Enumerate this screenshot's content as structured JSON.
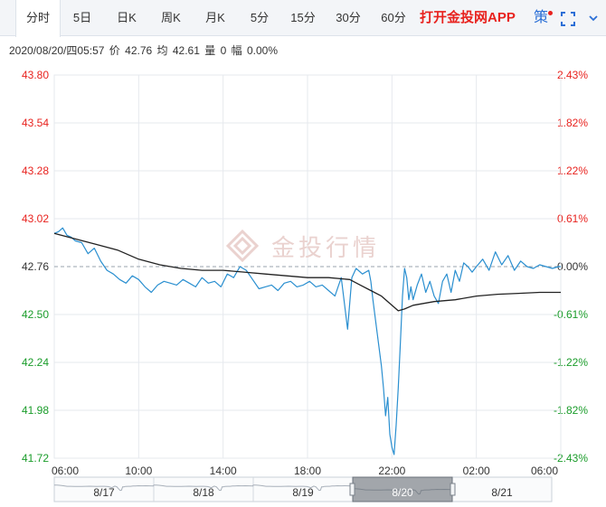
{
  "tabs": [
    "分时",
    "5日",
    "日K",
    "周K",
    "月K",
    "5分",
    "15分",
    "30分",
    "60分"
  ],
  "active_tab": 0,
  "promo_label": "打开金投网APP",
  "strategy_label": "策",
  "watermark": "金投行情",
  "info": {
    "datetime": "2020/08/20/四05:57",
    "price_label": "价",
    "price": "42.76",
    "avg_label": "均",
    "avg": "42.61",
    "volume_label": "量",
    "volume": "0",
    "change_label": "幅",
    "change": "0.00%"
  },
  "colors": {
    "price_line": "#2a8fd0",
    "avg_line": "#222222",
    "up": "#e8221e",
    "down": "#1a9c2a",
    "neutral": "#333333",
    "grid": "#e6e9ee"
  },
  "chart_data": {
    "type": "line",
    "ylim": [
      41.72,
      43.8
    ],
    "base_price": 42.76,
    "left_ticks": [
      "43.80",
      "43.54",
      "43.28",
      "43.02",
      "42.76",
      "42.50",
      "42.24",
      "41.98",
      "41.72"
    ],
    "right_ticks": [
      "2.43%",
      "1.82%",
      "1.22%",
      "0.61%",
      "0.00%",
      "-0.61%",
      "-1.22%",
      "-1.82%",
      "-2.43%"
    ],
    "x_ticks": [
      "06:00",
      "10:00",
      "14:00",
      "18:00",
      "22:00",
      "02:00",
      "06:00"
    ],
    "x_hours": [
      0,
      4,
      8,
      12,
      16,
      20,
      24
    ],
    "series": [
      {
        "key": "price",
        "x": [
          0,
          0.2,
          0.4,
          0.6,
          0.8,
          1.0,
          1.3,
          1.6,
          1.9,
          2.2,
          2.5,
          2.8,
          3.1,
          3.4,
          3.7,
          4.0,
          4.3,
          4.6,
          4.9,
          5.2,
          5.5,
          5.8,
          6.1,
          6.4,
          6.7,
          7.0,
          7.3,
          7.6,
          7.9,
          8.2,
          8.5,
          8.8,
          9.1,
          9.4,
          9.7,
          10.0,
          10.3,
          10.6,
          10.9,
          11.2,
          11.5,
          11.8,
          12.1,
          12.4,
          12.7,
          13.0,
          13.3,
          13.6,
          13.9,
          14.1,
          14.3,
          14.6,
          14.9,
          15.0,
          15.1,
          15.3,
          15.5,
          15.6,
          15.7,
          15.8,
          15.9,
          16.0,
          16.1,
          16.2,
          16.3,
          16.4,
          16.5,
          16.6,
          16.7,
          16.8,
          16.9,
          17.0,
          17.2,
          17.4,
          17.6,
          17.8,
          18.0,
          18.2,
          18.4,
          18.6,
          18.8,
          19.0,
          19.2,
          19.4,
          19.6,
          19.8,
          20.0,
          20.3,
          20.6,
          20.9,
          21.2,
          21.5,
          21.8,
          22.1,
          22.4,
          22.7,
          23.0,
          23.3,
          23.6,
          23.9,
          24.0
        ],
        "values": [
          42.94,
          42.95,
          42.97,
          42.93,
          42.92,
          42.9,
          42.89,
          42.83,
          42.86,
          42.79,
          42.74,
          42.72,
          42.69,
          42.67,
          42.71,
          42.69,
          42.65,
          42.62,
          42.66,
          42.68,
          42.67,
          42.66,
          42.69,
          42.67,
          42.65,
          42.7,
          42.67,
          42.68,
          42.65,
          42.72,
          42.7,
          42.76,
          42.74,
          42.69,
          42.64,
          42.65,
          42.66,
          42.63,
          42.67,
          42.68,
          42.65,
          42.66,
          42.68,
          42.65,
          42.66,
          42.63,
          42.6,
          42.7,
          42.42,
          42.7,
          42.75,
          42.72,
          42.74,
          42.68,
          42.58,
          42.4,
          42.22,
          42.1,
          41.95,
          42.05,
          41.85,
          41.78,
          41.74,
          41.9,
          42.1,
          42.35,
          42.6,
          42.75,
          42.7,
          42.58,
          42.65,
          42.58,
          42.66,
          42.72,
          42.62,
          42.68,
          42.6,
          42.56,
          42.68,
          42.72,
          42.62,
          42.74,
          42.68,
          42.78,
          42.76,
          42.73,
          42.76,
          42.8,
          42.74,
          42.84,
          42.77,
          42.82,
          42.74,
          42.79,
          42.76,
          42.75,
          42.77,
          42.76,
          42.75,
          42.76,
          42.76
        ]
      },
      {
        "key": "avg",
        "x": [
          0,
          1,
          2,
          3,
          4,
          5,
          6,
          7,
          8,
          9,
          10,
          11,
          12,
          13,
          14,
          14.5,
          15,
          15.5,
          16,
          16.3,
          16.6,
          17,
          18,
          19,
          20,
          21,
          22,
          23,
          24
        ],
        "values": [
          42.94,
          42.91,
          42.88,
          42.85,
          42.8,
          42.77,
          42.75,
          42.74,
          42.74,
          42.73,
          42.72,
          42.71,
          42.7,
          42.7,
          42.69,
          42.66,
          42.63,
          42.6,
          42.55,
          42.52,
          42.53,
          42.55,
          42.57,
          42.58,
          42.6,
          42.61,
          42.615,
          42.62,
          42.62
        ]
      }
    ]
  },
  "navigator": {
    "labels": [
      "8/17",
      "8/18",
      "8/19",
      "8/20",
      "8/21"
    ]
  }
}
